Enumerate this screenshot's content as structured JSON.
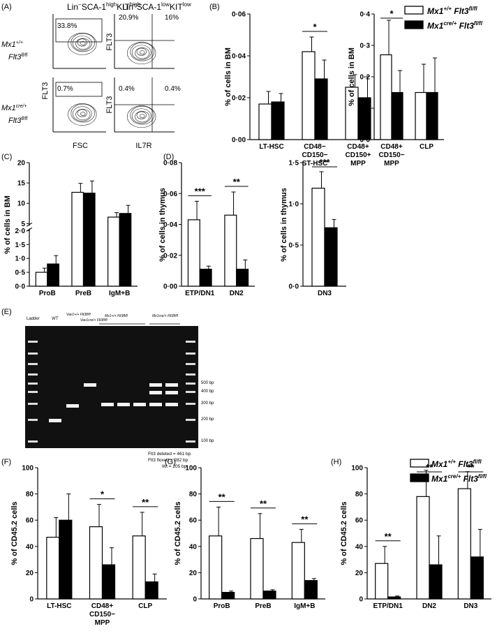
{
  "panel_labels": {
    "A": "(A)",
    "B": "(B)",
    "C": "(C)",
    "D": "(D)",
    "E": "(E)",
    "F": "(F)",
    "G": "(G)",
    "H": "(H)"
  },
  "legend": {
    "wt": {
      "pre": "Mx1",
      "sup": "+/+",
      "mid": " Flt3",
      "sup2": "fl/fl"
    },
    "cre": {
      "pre": "Mx1",
      "sup": "cre/+",
      "mid": " Flt3",
      "sup2": "fl/fl"
    },
    "colors": {
      "wt": "#ffffff",
      "cre": "#000000"
    }
  },
  "flow": {
    "col1_title": {
      "a": "Lin",
      "b": "−",
      "c": "SCA-1",
      "d": "high",
      "e": "KIT",
      "f": "high"
    },
    "col2_title": {
      "a": "Lin",
      "b": "−",
      "c": "SCA-1",
      "d": "low",
      "e": "KIT",
      "f": "low"
    },
    "row1_label": {
      "l1": "Mx1",
      "l1s": "+/+",
      "l2": "Flt3",
      "l2s": "fl/fl"
    },
    "row2_label": {
      "l1": "Mx1",
      "l1s": "cre/+",
      "l2": "Flt3",
      "l2s": "fl/fl"
    },
    "y_axis": "FLT3",
    "x_axis_left": "FSC",
    "x_axis_right": "IL7R",
    "top_left_pct": "33.8%",
    "bottom_left_pct": "0.7%",
    "top_right": {
      "tl": "20.9%",
      "tr": "16%"
    },
    "bottom_right": {
      "tl": "0.4%",
      "tr": "0.4%"
    }
  },
  "gel": {
    "lanes": [
      "Ladder",
      "WT",
      "Vav1+/+ Flt3fl/fl",
      "Vav1cre/+ Flt3fl/fl",
      "Mx1+/+ Flt3fl/fl",
      "Mx1cre/+ Flt3fl/fl"
    ],
    "size_markers": [
      "500 bp",
      "400 bp",
      "300 bp",
      "200 bp",
      "100 bp"
    ],
    "notes": [
      "Flt3 deleted = 461 bp",
      "Flt3 floxed = 282 bp",
      "Wt = 205 bp"
    ]
  },
  "chart_data": [
    {
      "id": "B1",
      "type": "bar",
      "ylabel": "% of cells in BM",
      "ylim": [
        0,
        0.06
      ],
      "ytick_labels": [
        "0·00",
        "0·02",
        "0·04",
        "0·06"
      ],
      "categories": [
        "LT-HSC",
        "CD48− CD150− ST-HSC",
        "CD48+ CD150+ MPP"
      ],
      "series": [
        {
          "name": "Mx1+/+ Flt3fl/fl",
          "values": [
            0.017,
            0.042,
            0.025
          ],
          "err": [
            0.006,
            0.007,
            0.006
          ]
        },
        {
          "name": "Mx1cre/+ Flt3fl/fl",
          "values": [
            0.018,
            0.029,
            0.02
          ],
          "err": [
            0.004,
            0.009,
            0.01
          ]
        }
      ],
      "sig": [
        {
          "cat": 1,
          "label": "*"
        }
      ]
    },
    {
      "id": "B2",
      "type": "bar",
      "ylabel": "% of cells in BM",
      "ylim": [
        0,
        0.4
      ],
      "ytick_labels": [
        "0·0",
        "0·1",
        "0·2",
        "0·3",
        "0·4"
      ],
      "categories": [
        "CD48+ CD150− MPP",
        "CLP"
      ],
      "series": [
        {
          "name": "Mx1+/+ Flt3fl/fl",
          "values": [
            0.27,
            0.15
          ],
          "err": [
            0.11,
            0.09
          ]
        },
        {
          "name": "Mx1cre/+ Flt3fl/fl",
          "values": [
            0.15,
            0.15
          ],
          "err": [
            0.07,
            0.11
          ]
        }
      ],
      "sig": [
        {
          "cat": 0,
          "label": "*"
        }
      ]
    },
    {
      "id": "C",
      "type": "bar",
      "ylabel": "% of cells in BM",
      "ylim": [
        0,
        20
      ],
      "broken_axis": [
        2,
        5
      ],
      "ytick_labels": [
        "0·0",
        "0·5",
        "1·0",
        "1·5",
        "2·0",
        "5",
        "10",
        "15",
        "20"
      ],
      "categories": [
        "ProB",
        "PreB",
        "IgM+B"
      ],
      "series": [
        {
          "name": "Mx1+/+ Flt3fl/fl",
          "values": [
            0.5,
            12.7,
            6.6
          ],
          "err": [
            0.15,
            2.2,
            1.1
          ]
        },
        {
          "name": "Mx1cre/+ Flt3fl/fl",
          "values": [
            0.8,
            12.5,
            7.5
          ],
          "err": [
            0.3,
            3.0,
            2.0
          ]
        }
      ]
    },
    {
      "id": "D1",
      "type": "bar",
      "ylabel": "% of cells in thymus",
      "ylim": [
        0,
        0.08
      ],
      "ytick_labels": [
        "0·00",
        "0·02",
        "0·04",
        "0·06",
        "0·08"
      ],
      "categories": [
        "ETP/DN1",
        "DN2"
      ],
      "series": [
        {
          "name": "Mx1+/+ Flt3fl/fl",
          "values": [
            0.043,
            0.046
          ],
          "err": [
            0.012,
            0.015
          ]
        },
        {
          "name": "Mx1cre/+ Flt3fl/fl",
          "values": [
            0.011,
            0.011
          ],
          "err": [
            0.002,
            0.006
          ]
        }
      ],
      "sig": [
        {
          "cat": 0,
          "label": "***"
        },
        {
          "cat": 1,
          "label": "**"
        }
      ]
    },
    {
      "id": "D2",
      "type": "bar",
      "ylabel": "% of cells in thymus",
      "ylim": [
        0,
        1.5
      ],
      "ytick_labels": [
        "0·0",
        "0·5",
        "1·0",
        "1·5"
      ],
      "categories": [
        "DN3"
      ],
      "series": [
        {
          "name": "Mx1+/+ Flt3fl/fl",
          "values": [
            1.19
          ],
          "err": [
            0.2
          ]
        },
        {
          "name": "Mx1cre/+ Flt3fl/fl",
          "values": [
            0.71
          ],
          "err": [
            0.1
          ]
        }
      ],
      "sig": [
        {
          "cat": 0,
          "label": "***"
        }
      ]
    },
    {
      "id": "F",
      "type": "bar",
      "ylabel": "% of CD45.2 cells",
      "ylim": [
        0,
        100
      ],
      "ytick_labels": [
        "0",
        "20",
        "40",
        "60",
        "80",
        "100"
      ],
      "categories": [
        "LT-HSC",
        "CD48+ CD150− MPP",
        "CLP"
      ],
      "series": [
        {
          "name": "Mx1+/+ Flt3fl/fl",
          "values": [
            47,
            55,
            48
          ],
          "err": [
            15,
            17,
            18
          ]
        },
        {
          "name": "Mx1cre/+ Flt3fl/fl",
          "values": [
            60,
            26,
            13
          ],
          "err": [
            20,
            13,
            6
          ]
        }
      ],
      "sig": [
        {
          "cat": 1,
          "label": "*"
        },
        {
          "cat": 2,
          "label": "**"
        }
      ]
    },
    {
      "id": "G",
      "type": "bar",
      "ylabel": "% of CD45.2 cells",
      "ylim": [
        0,
        100
      ],
      "ytick_labels": [
        "0",
        "20",
        "40",
        "60",
        "80",
        "100"
      ],
      "categories": [
        "ProB",
        "PreB",
        "IgM+B"
      ],
      "series": [
        {
          "name": "Mx1+/+ Flt3fl/fl",
          "values": [
            48,
            46,
            43
          ],
          "err": [
            22,
            19,
            10
          ]
        },
        {
          "name": "Mx1cre/+ Flt3fl/fl",
          "values": [
            5,
            6,
            14
          ],
          "err": [
            1,
            1,
            1.5
          ]
        }
      ],
      "sig": [
        {
          "cat": 0,
          "label": "**"
        },
        {
          "cat": 1,
          "label": "**"
        },
        {
          "cat": 2,
          "label": "**"
        }
      ]
    },
    {
      "id": "H",
      "type": "bar",
      "ylabel": "% of CD45.2 cells",
      "ylim": [
        0,
        100
      ],
      "ytick_labels": [
        "0",
        "20",
        "40",
        "60",
        "80",
        "100"
      ],
      "categories": [
        "ETP/DN1",
        "DN2",
        "DN3"
      ],
      "series": [
        {
          "name": "Mx1+/+ Flt3fl/fl",
          "values": [
            27,
            78,
            84
          ],
          "err": [
            13,
            20,
            13
          ]
        },
        {
          "name": "Mx1cre/+ Flt3fl/fl",
          "values": [
            1.5,
            26,
            32
          ],
          "err": [
            0.7,
            22,
            21
          ]
        }
      ],
      "sig": [
        {
          "cat": 0,
          "label": "**"
        },
        {
          "cat": 1,
          "label": "**"
        },
        {
          "cat": 2,
          "label": "**"
        }
      ]
    }
  ]
}
